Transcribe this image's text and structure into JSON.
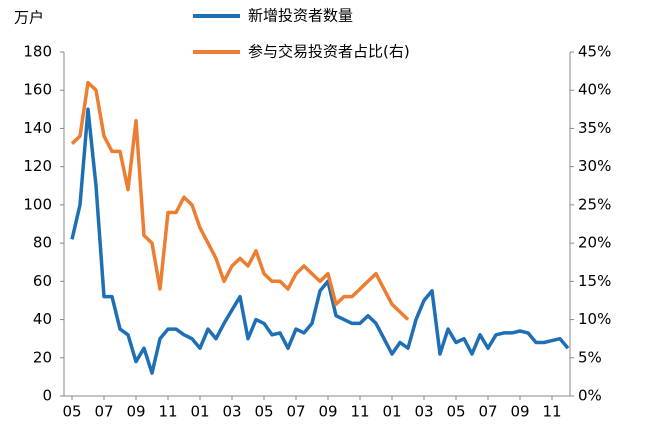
{
  "chart_data": {
    "type": "line",
    "y_axis_label": "万户",
    "categories": [
      "05",
      null,
      null,
      null,
      "07",
      null,
      null,
      null,
      "09",
      null,
      null,
      null,
      "11",
      null,
      null,
      null,
      "01",
      null,
      null,
      null,
      "03",
      null,
      null,
      null,
      "05",
      null,
      null,
      null,
      "07",
      null,
      null,
      null,
      "09",
      null,
      null,
      null,
      "11",
      null,
      null,
      null,
      "01",
      null,
      null,
      null,
      "03",
      null,
      null,
      null,
      "05",
      null,
      null,
      null,
      "07",
      null,
      null,
      null,
      "09",
      null,
      null,
      null,
      "11",
      null,
      null
    ],
    "series": [
      {
        "name": "新增投资者数量",
        "color": "#1f6fb5",
        "axis": "y",
        "values": [
          82,
          100,
          150,
          110,
          52,
          52,
          35,
          32,
          18,
          25,
          12,
          30,
          35,
          35,
          32,
          30,
          25,
          35,
          30,
          38,
          45,
          52,
          30,
          40,
          38,
          32,
          33,
          25,
          35,
          33,
          38,
          55,
          60,
          42,
          40,
          38,
          38,
          42,
          38,
          30,
          22,
          28,
          25,
          40,
          50,
          55,
          22,
          35,
          28,
          30,
          22,
          32,
          25,
          32,
          33,
          33,
          34,
          33,
          28,
          28,
          29,
          30,
          25
        ]
      },
      {
        "name": "参与交易投资者占比(右)",
        "color": "#ed7d31",
        "axis": "y2",
        "values": [
          33,
          34,
          41,
          40,
          34,
          32,
          32,
          27,
          36,
          21,
          20,
          14,
          24,
          24,
          26,
          25,
          22,
          20,
          18,
          15,
          17,
          18,
          17,
          19,
          16,
          15,
          15,
          14,
          16,
          17,
          16,
          15,
          16,
          12,
          13,
          13,
          14,
          15,
          16,
          14,
          12,
          11,
          10,
          null,
          null,
          null,
          null,
          null,
          null,
          null,
          null,
          null,
          null,
          null,
          null,
          null,
          null,
          null,
          null,
          null,
          null,
          null,
          null
        ]
      }
    ],
    "ylim": [
      0,
      180
    ],
    "yticks": [
      0,
      20,
      40,
      60,
      80,
      100,
      120,
      140,
      160,
      180
    ],
    "y2lim": [
      0,
      45
    ],
    "y2ticks": [
      {
        "value": 0,
        "label": "0%"
      },
      {
        "value": 5,
        "label": "5%"
      },
      {
        "value": 10,
        "label": "10%"
      },
      {
        "value": 15,
        "label": "15%"
      },
      {
        "value": 20,
        "label": "20%"
      },
      {
        "value": 25,
        "label": "25%"
      },
      {
        "value": 30,
        "label": "30%"
      },
      {
        "value": 35,
        "label": "35%"
      },
      {
        "value": 40,
        "label": "40%"
      },
      {
        "value": 45,
        "label": "45%"
      }
    ],
    "grid": false,
    "legend": "top"
  }
}
